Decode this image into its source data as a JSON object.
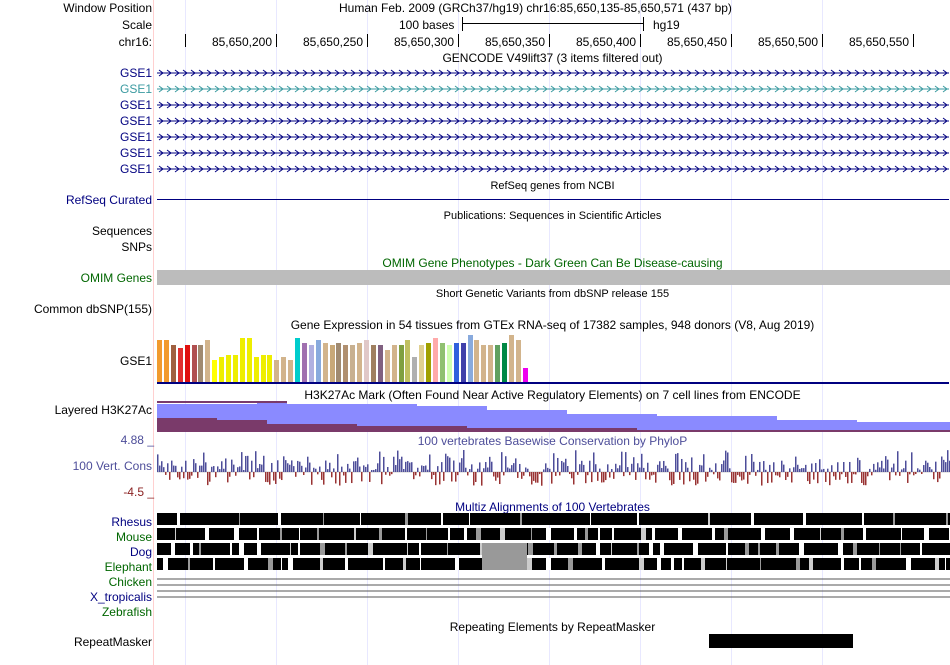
{
  "header": {
    "window_position_label": "Window Position",
    "window_position_value": "Human Feb. 2009 (GRCh37/hg19)   chr16:85,650,135-85,650,571 (437 bp)",
    "scale_label": "Scale",
    "scale_value": "100 bases",
    "scale_assembly": "hg19",
    "chrom_label": "chr16:",
    "ticks": [
      "85,650,200",
      "85,650,250",
      "85,650,300",
      "85,650,350",
      "85,650,400",
      "85,650,450",
      "85,650,500",
      "85,650,550"
    ]
  },
  "gencode": {
    "title": "GENCODE V49lift37 (3 items filtered out)",
    "items": [
      "GSE1",
      "GSE1",
      "GSE1",
      "GSE1",
      "GSE1",
      "GSE1",
      "GSE1"
    ],
    "item_colors": [
      "#000080",
      "#3a9aa0",
      "#000080",
      "#000080",
      "#000080",
      "#000080",
      "#000080"
    ]
  },
  "refseq": {
    "title": "RefSeq genes from NCBI",
    "label": "RefSeq Curated"
  },
  "publications": {
    "title": "Publications: Sequences in Scientific Articles",
    "label_line1": "Sequences",
    "label_line2": "SNPs"
  },
  "omim": {
    "title": "OMIM Gene Phenotypes - Dark Green Can Be Disease-causing",
    "label": "OMIM Genes"
  },
  "dbsnp": {
    "title": "Short Genetic Variants from dbSNP release 155",
    "label": "Common dbSNP(155)"
  },
  "gtex": {
    "title": "Gene Expression in 54 tissues from GTEx RNA-seq of 17382 samples, 948 donors (V8, Aug 2019)",
    "label": "GSE1",
    "levels": [
      0.85,
      0.85,
      0.75,
      0.7,
      0.75,
      0.75,
      0.75,
      0.85,
      0.45,
      0.5,
      0.55,
      0.55,
      0.9,
      0.9,
      0.5,
      0.55,
      0.55,
      0.45,
      0.5,
      0.45,
      0.9,
      0.8,
      0.75,
      0.85,
      0.8,
      0.75,
      0.8,
      0.75,
      0.75,
      0.8,
      0.85,
      0.75,
      0.75,
      0.65,
      0.75,
      0.75,
      0.85,
      0.5,
      0.75,
      0.8,
      0.9,
      0.8,
      0.75,
      0.8,
      0.8,
      0.95,
      0.85,
      0.75,
      0.75,
      0.75,
      0.8,
      0.95,
      0.85,
      0.28
    ],
    "colors": [
      "#f29a2e",
      "#f29a2e",
      "#a06040",
      "#e03030",
      "#e01010",
      "#b05050",
      "#a08a70",
      "#d2b48c",
      "#ffff00",
      "#eeee00",
      "#eeee00",
      "#eeee00",
      "#eeee00",
      "#eeee00",
      "#eeee00",
      "#eeee00",
      "#eeee00",
      "#d2b48c",
      "#d2b48c",
      "#d2b48c",
      "#00cccc",
      "#a070b0",
      "#b0b0e0",
      "#88aadd",
      "#d2b48c",
      "#c8a878",
      "#a08a70",
      "#b09070",
      "#c8b090",
      "#d2b48c",
      "#e0c8c8",
      "#a08060",
      "#806080",
      "#d2b48c",
      "#d2b48c",
      "#80a040",
      "#c0c060",
      "#b0b0b0",
      "#e0d090",
      "#a0a000",
      "#ffaaaa",
      "#90c070",
      "#d0ffb0",
      "#3060dd",
      "#4040aa",
      "#88aadd",
      "#d2b48c",
      "#d2b48c",
      "#d2b48c",
      "#60a060",
      "#008844",
      "#d2b48c",
      "#d2b48c",
      "#ee00ee"
    ]
  },
  "h3k27ac": {
    "title": "H3K27Ac Mark (Often Found Near Active Regulatory Elements) on 7 cell lines from ENCODE",
    "label": "Layered H3K27Ac"
  },
  "phylop": {
    "title": "100 vertebrates Basewise Conservation by PhyloP",
    "label": "100 Vert. Cons",
    "max": "4.88 _",
    "min": "-4.5 _"
  },
  "multiz": {
    "title": "Multiz Alignments of 100 Vertebrates",
    "species": [
      {
        "name": "Rhesus",
        "color": "#000080"
      },
      {
        "name": "Mouse",
        "color": "#006600"
      },
      {
        "name": "Dog",
        "color": "#000080"
      },
      {
        "name": "Elephant",
        "color": "#006600"
      },
      {
        "name": "Chicken",
        "color": "#006600"
      },
      {
        "name": "X_tropicalis",
        "color": "#000080"
      },
      {
        "name": "Zebrafish",
        "color": "#006600"
      }
    ]
  },
  "repeatmasker": {
    "title": "Repeating Elements by RepeatMasker",
    "label": "RepeatMasker"
  }
}
